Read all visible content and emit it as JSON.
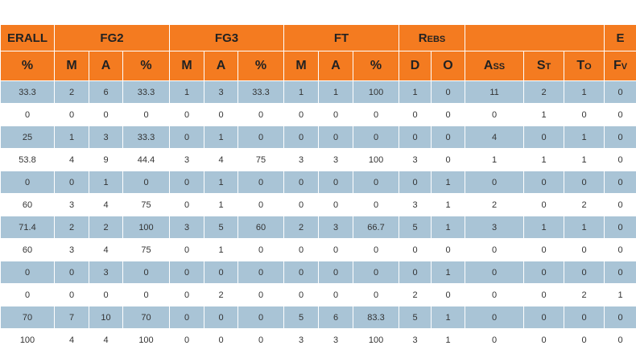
{
  "table": {
    "group_headers": [
      "ERALL",
      "FG2",
      "FG3",
      "FT",
      "Rebs",
      null,
      "E"
    ],
    "headers": [
      "%",
      "M",
      "A",
      "%",
      "M",
      "A",
      "%",
      "M",
      "A",
      "%",
      "D",
      "O",
      "Ass",
      "St",
      "To",
      "Fv"
    ],
    "rows": [
      [
        33.3,
        2,
        6,
        33.3,
        1,
        3,
        33.3,
        1,
        1,
        100,
        1,
        0,
        11,
        2,
        1,
        0
      ],
      [
        0,
        0,
        0,
        0,
        0,
        0,
        0,
        0,
        0,
        0,
        0,
        0,
        0,
        1,
        0,
        0
      ],
      [
        25,
        1,
        3,
        33.3,
        0,
        1,
        0,
        0,
        0,
        0,
        0,
        0,
        4,
        0,
        1,
        0
      ],
      [
        53.8,
        4,
        9,
        44.4,
        3,
        4,
        75,
        3,
        3,
        100,
        3,
        0,
        1,
        1,
        1,
        0
      ],
      [
        0,
        0,
        1,
        0,
        0,
        1,
        0,
        0,
        0,
        0,
        0,
        1,
        0,
        0,
        0,
        0
      ],
      [
        60,
        3,
        4,
        75,
        0,
        1,
        0,
        0,
        0,
        0,
        3,
        1,
        2,
        0,
        2,
        0
      ],
      [
        71.4,
        2,
        2,
        100,
        3,
        5,
        60,
        2,
        3,
        66.7,
        5,
        1,
        3,
        1,
        1,
        0
      ],
      [
        60,
        3,
        4,
        75,
        0,
        1,
        0,
        0,
        0,
        0,
        0,
        0,
        0,
        0,
        0,
        0
      ],
      [
        0,
        0,
        3,
        0,
        0,
        0,
        0,
        0,
        0,
        0,
        0,
        1,
        0,
        0,
        0,
        0
      ],
      [
        0,
        0,
        0,
        0,
        0,
        2,
        0,
        0,
        0,
        0,
        2,
        0,
        0,
        0,
        2,
        1
      ],
      [
        70,
        7,
        10,
        70,
        0,
        0,
        0,
        5,
        6,
        83.3,
        5,
        1,
        0,
        0,
        0,
        0
      ],
      [
        100,
        4,
        4,
        100,
        0,
        0,
        0,
        3,
        3,
        100,
        3,
        1,
        0,
        0,
        0,
        0
      ]
    ]
  }
}
